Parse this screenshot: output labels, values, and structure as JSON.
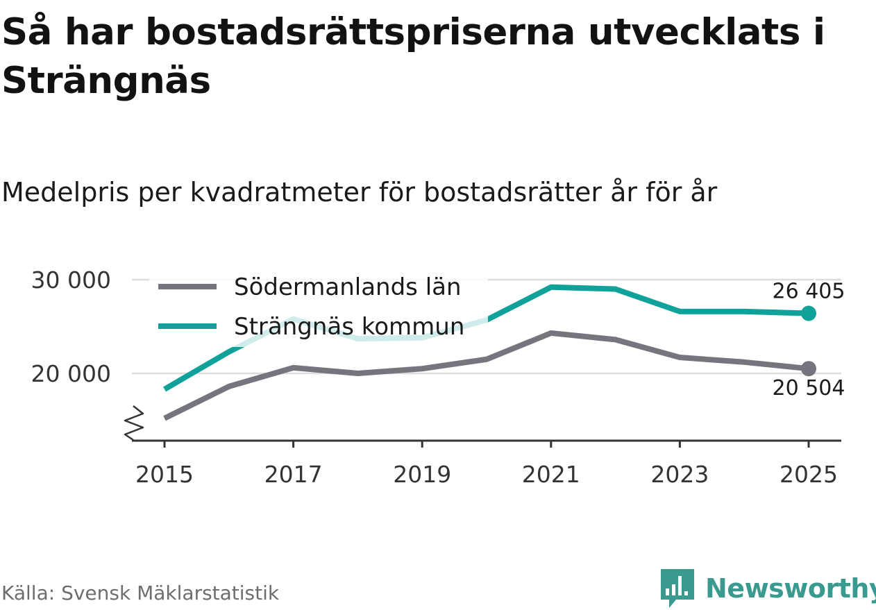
{
  "title": "Så har bostadsrättspriserna utvecklats i Strängnäs",
  "subtitle": "Medelpris per kvadratmeter för bostadsrätter år för år",
  "source": "Källa: Svensk Mäklarstatistik",
  "brand": {
    "name": "Newsworthy",
    "icon": "newsworthy-logo-icon",
    "color": "#3a9a8f"
  },
  "colors": {
    "sodermanland": "#76747c",
    "strangnas": "#10a29a",
    "grid": "#dddddd",
    "axis": "#333333"
  },
  "chart_data": {
    "type": "line",
    "title": "Medelpris per kvadratmeter för bostadsrätter år för år",
    "x": [
      2015,
      2016,
      2017,
      2018,
      2019,
      2020,
      2021,
      2022,
      2023,
      2024,
      2025
    ],
    "x_ticks": [
      "2015",
      "2017",
      "2019",
      "2021",
      "2023",
      "2025"
    ],
    "y_ticks": [
      {
        "value": 20000,
        "label": "20 000"
      },
      {
        "value": 30000,
        "label": "30 000"
      }
    ],
    "ylim": [
      13000,
      30000
    ],
    "axis_break": true,
    "grid": true,
    "legend_position": "top-left",
    "series": [
      {
        "name": "Södermanlands län",
        "color": "#76747c",
        "values": [
          15200,
          18600,
          20600,
          20000,
          20500,
          21500,
          24300,
          23600,
          21700,
          21200,
          20504
        ],
        "end_label": "20 504",
        "end_label_position": "below"
      },
      {
        "name": "Strängnäs kommun",
        "color": "#10a29a",
        "values": [
          18300,
          22300,
          25800,
          23700,
          23800,
          25700,
          29200,
          29000,
          26600,
          26600,
          26405
        ],
        "end_label": "26 405",
        "end_label_position": "above"
      }
    ]
  }
}
